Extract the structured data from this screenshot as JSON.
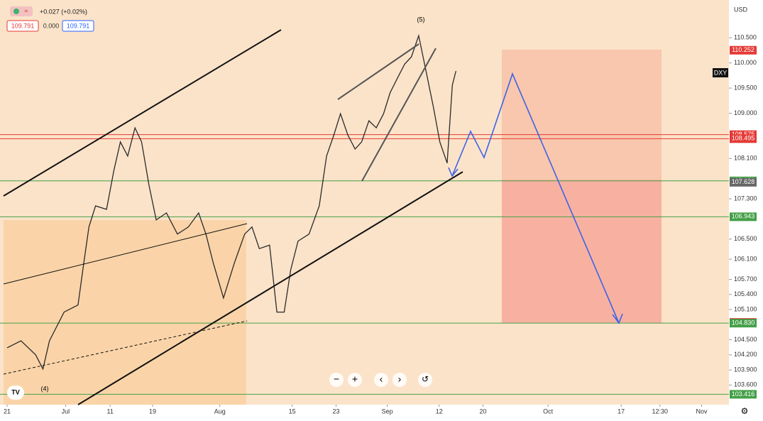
{
  "header": {
    "symbol_icon": "≈",
    "change": "+0.027 (+0.02%)",
    "bid": "109.791",
    "spread": "0.000",
    "ask": "109.791",
    "currency": "USD",
    "ticker": "DXY",
    "wave_top": "(5)",
    "wave_bottom": "(4)"
  },
  "chart_data": {
    "type": "line",
    "x": [
      0,
      1.9,
      3.9,
      4.9,
      5.8,
      7.8,
      9.7,
      10.5,
      11.2,
      12.1,
      13.6,
      14.6,
      15.5,
      16.5,
      17.5,
      18.4,
      19.4,
      20.4,
      21.8,
      23.3,
      24.8,
      26.2,
      27.2,
      28.2,
      29.6,
      31.1,
      32.5,
      33.5,
      34.5,
      35.9,
      36.9,
      37.9,
      38.8,
      39.8,
      41.3,
      42.7,
      43.7,
      44.7,
      45.6,
      46.6,
      47.6,
      48.5,
      49.5,
      50.5,
      51.5,
      52.4,
      53.4,
      54.4,
      55.3,
      56.3,
      57.3,
      58.3,
      59.2,
      60.2,
      60.9,
      61.4
    ],
    "values": [
      104.34,
      104.48,
      104.2,
      103.92,
      104.48,
      105.05,
      105.19,
      106.03,
      106.74,
      107.16,
      107.09,
      107.86,
      108.43,
      108.15,
      108.71,
      108.43,
      107.58,
      106.88,
      107.02,
      106.6,
      106.74,
      107.02,
      106.6,
      106.03,
      105.33,
      106.03,
      106.6,
      106.74,
      106.31,
      106.38,
      105.05,
      105.05,
      105.89,
      106.46,
      106.6,
      107.16,
      108.15,
      108.57,
      108.99,
      108.57,
      108.29,
      108.43,
      108.85,
      108.71,
      108.99,
      109.41,
      109.7,
      109.98,
      110.12,
      110.54,
      109.84,
      109.13,
      108.43,
      108.01,
      109.56,
      109.84
    ],
    "color": "#2a2a2a",
    "xlim": [
      -0.97,
      98.74
    ],
    "ylim": [
      103.21,
      111.25
    ],
    "xticks": [
      {
        "value": 0,
        "label": "21"
      },
      {
        "value": 8,
        "label": "Jul"
      },
      {
        "value": 14.1,
        "label": "11"
      },
      {
        "value": 19.9,
        "label": "19"
      },
      {
        "value": 29.1,
        "label": "Aug"
      },
      {
        "value": 39,
        "label": "15"
      },
      {
        "value": 45,
        "label": "23"
      },
      {
        "value": 52,
        "label": "Sep"
      },
      {
        "value": 59.1,
        "label": "12"
      },
      {
        "value": 65.1,
        "label": "20"
      },
      {
        "value": 74,
        "label": "Oct"
      },
      {
        "value": 84,
        "label": "17"
      },
      {
        "value": 89.3,
        "label": "12:30"
      },
      {
        "value": 95,
        "label": "Nov"
      }
    ],
    "yticks": [
      {
        "value": 110.5,
        "label": "110.500"
      },
      {
        "value": 110,
        "label": "110.000"
      },
      {
        "value": 109.5,
        "label": "109.500"
      },
      {
        "value": 109,
        "label": "109.000"
      },
      {
        "value": 108.1,
        "label": "108.100"
      },
      {
        "value": 107.3,
        "label": "107.300"
      },
      {
        "value": 106.5,
        "label": "106.500"
      },
      {
        "value": 106.1,
        "label": "106.100"
      },
      {
        "value": 105.7,
        "label": "105.700"
      },
      {
        "value": 105.4,
        "label": "105.400"
      },
      {
        "value": 105.1,
        "label": "105.100"
      },
      {
        "value": 104.5,
        "label": "104.500"
      },
      {
        "value": 104.2,
        "label": "104.200"
      },
      {
        "value": 103.9,
        "label": "103.900"
      },
      {
        "value": 103.6,
        "label": "103.600"
      }
    ],
    "price_marks": [
      {
        "value": 110.252,
        "color": "#e53935"
      },
      {
        "value": 108.575,
        "color": "#e53935",
        "line": true
      },
      {
        "value": 108.495,
        "color": "#e53935",
        "line": true
      },
      {
        "value": 107.656,
        "color": "#43a047",
        "line": true
      },
      {
        "value": 107.628,
        "color": "#666666"
      },
      {
        "value": 106.943,
        "color": "#43a047",
        "line": true
      },
      {
        "value": 104.841,
        "color": "#d50000"
      },
      {
        "value": 104.83,
        "label": "104.830",
        "color": "#43a047",
        "line": true
      },
      {
        "value": 103.416,
        "color": "#43a047",
        "line": true
      }
    ]
  }
}
